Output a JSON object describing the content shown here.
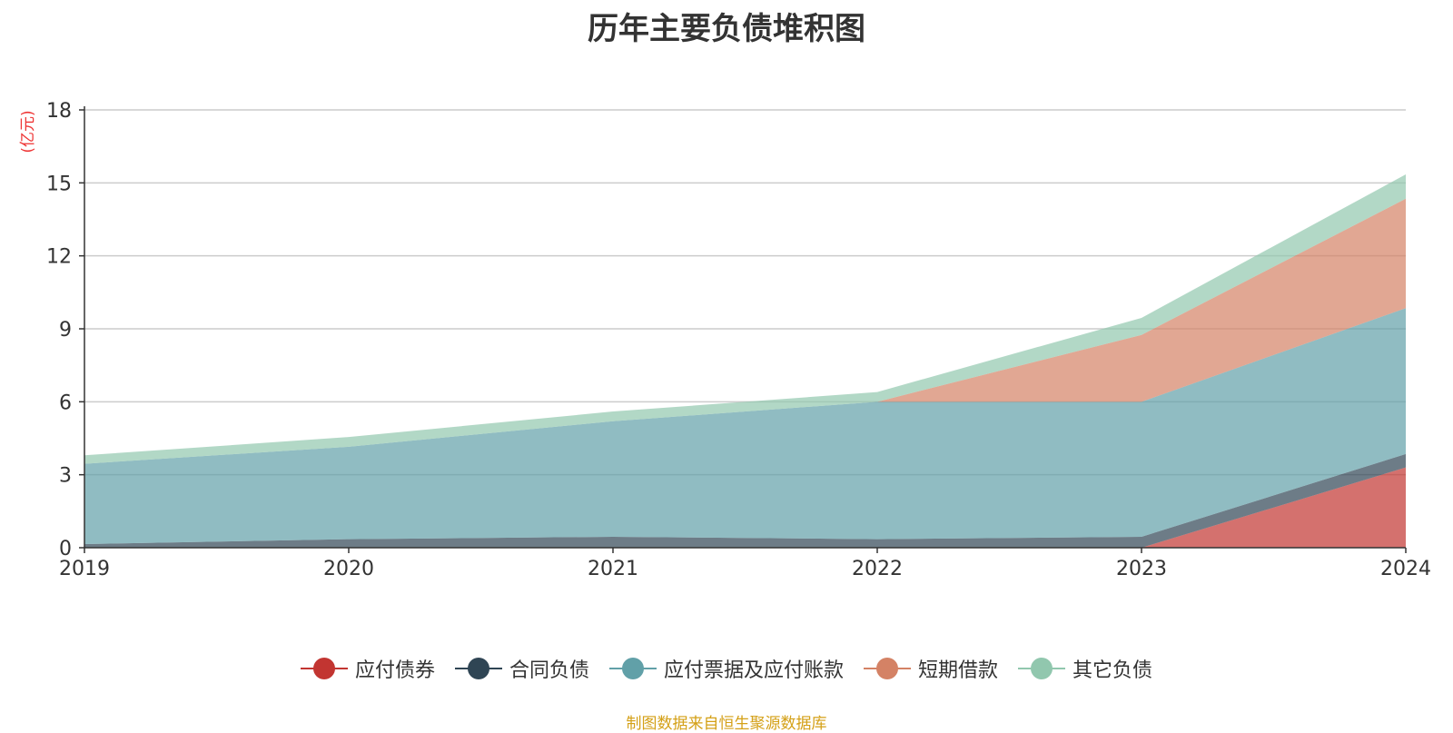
{
  "title": "历年主要负债堆积图",
  "source_note": "制图数据来自恒生聚源数据库",
  "chart_data": {
    "type": "area",
    "stacked": true,
    "title": "历年主要负债堆积图",
    "unit_label": "(亿元)",
    "x": [
      "2019",
      "2020",
      "2021",
      "2022",
      "2023",
      "2024"
    ],
    "ylim": [
      0,
      18
    ],
    "yticks": [
      0,
      3,
      6,
      9,
      12,
      15,
      18
    ],
    "grid": true,
    "legend_position": "bottom",
    "series": [
      {
        "name": "应付债券",
        "color": "#c23531",
        "values": [
          0,
          0,
          0,
          0,
          0,
          3.3
        ]
      },
      {
        "name": "合同负债",
        "color": "#2f4554",
        "values": [
          0.15,
          0.35,
          0.45,
          0.35,
          0.45,
          0.55
        ]
      },
      {
        "name": "应付票据及应付账款",
        "color": "#61a0a8",
        "values": [
          3.3,
          3.8,
          4.75,
          5.65,
          5.55,
          6.0
        ]
      },
      {
        "name": "短期借款",
        "color": "#d48265",
        "values": [
          0,
          0,
          0,
          0,
          2.75,
          4.5
        ]
      },
      {
        "name": "其它负债",
        "color": "#91c7ae",
        "values": [
          0.35,
          0.4,
          0.4,
          0.4,
          0.7,
          1.0
        ]
      }
    ]
  }
}
